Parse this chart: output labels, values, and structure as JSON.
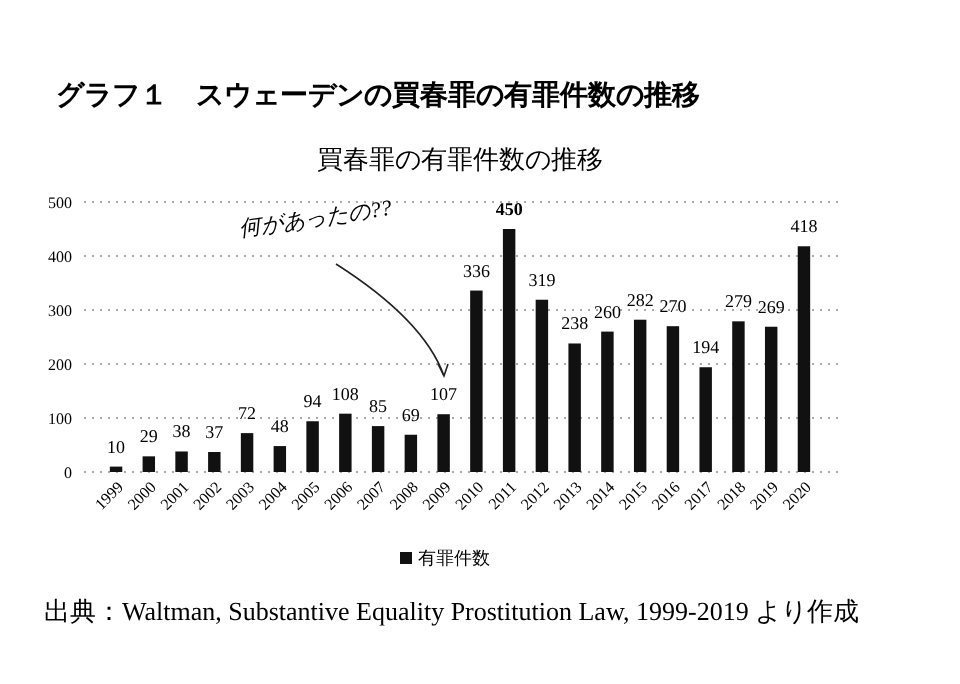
{
  "chart_data": {
    "type": "bar",
    "title": "グラフ１　スウェーデンの買春罪の有罪件数の推移",
    "subtitle": "買春罪の有罪件数の推移",
    "categories": [
      "1999",
      "2000",
      "2001",
      "2002",
      "2003",
      "2004",
      "2005",
      "2006",
      "2007",
      "2008",
      "2009",
      "2010",
      "2011",
      "2012",
      "2013",
      "2014",
      "2015",
      "2016",
      "2017",
      "2018",
      "2019",
      "2020"
    ],
    "series": [
      {
        "name": "有罪件数",
        "color": "#111111",
        "values": [
          10,
          29,
          38,
          37,
          72,
          48,
          94,
          108,
          85,
          69,
          107,
          336,
          450,
          319,
          238,
          260,
          282,
          270,
          194,
          279,
          269,
          418
        ]
      }
    ],
    "ylim": [
      0,
      500
    ],
    "yticks": [
      0,
      100,
      200,
      300,
      400,
      500
    ],
    "grid": "y",
    "legend": "bottom",
    "data_labels": true,
    "annotations": [
      "何があったの??",
      "出典：Waltman, Substantive Equality Prostitution Law, 1999-2019 より作成"
    ]
  }
}
